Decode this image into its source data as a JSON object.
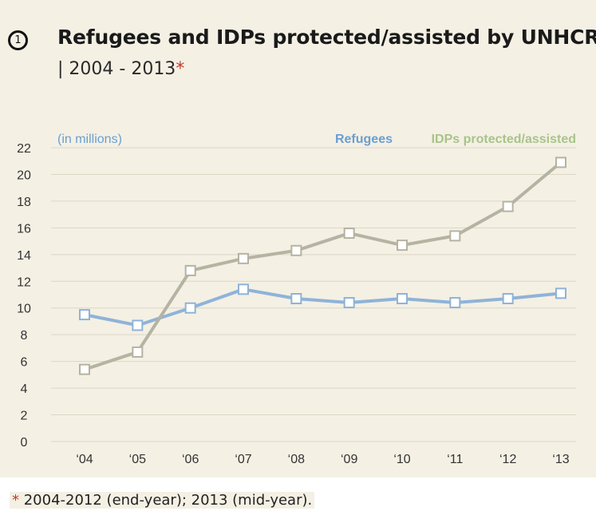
{
  "header": {
    "badge": "1",
    "title": "Refugees and IDPs protected/assisted by UNHCR",
    "subtitle_prefix": "| 2004 - 2013",
    "subtitle_star": "*"
  },
  "footnote": {
    "star": "*",
    "text": " 2004-2012 (end-year); 2013 (mid-year)."
  },
  "colors": {
    "background": "#f4f0e4",
    "refugees": "#8fb3d8",
    "idps": "#b5b3a1",
    "refugees_legend": "#6b9fd1",
    "idps_legend": "#a8c48a",
    "grid": "#dcd6c4"
  },
  "chart_data": {
    "type": "line",
    "unit_label": "(in millions)",
    "categories": [
      "‘04",
      "‘05",
      "‘06",
      "‘07",
      "‘08",
      "‘09",
      "‘10",
      "‘11",
      "‘12",
      "‘13"
    ],
    "series": [
      {
        "name": "Refugees",
        "values": [
          9.5,
          8.7,
          10.0,
          11.4,
          10.7,
          10.4,
          10.7,
          10.4,
          10.7,
          11.1
        ]
      },
      {
        "name": "IDPs protected/assisted",
        "values": [
          5.4,
          6.7,
          12.8,
          13.7,
          14.3,
          15.6,
          14.7,
          15.4,
          17.6,
          20.9
        ]
      }
    ],
    "y_ticks": [
      0,
      2,
      4,
      6,
      8,
      10,
      12,
      14,
      16,
      18,
      20,
      22
    ],
    "ylim": [
      0,
      22
    ],
    "grid": true,
    "legend_position": "top-right"
  }
}
